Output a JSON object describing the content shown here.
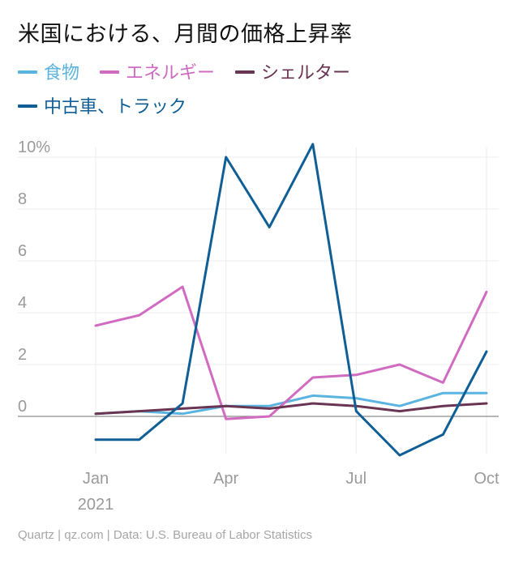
{
  "title": "米国における、月間の価格上昇率",
  "source": "Quartz | qz.com | Data: U.S. Bureau of Labor Statistics",
  "chart_data": {
    "type": "line",
    "title": "米国における、月間の価格上昇率",
    "x": [
      "2021-01",
      "2021-02",
      "2021-03",
      "2021-04",
      "2021-05",
      "2021-06",
      "2021-07",
      "2021-08",
      "2021-09",
      "2021-10"
    ],
    "xticks": [
      {
        "label": "Jan",
        "sublabel": "2021",
        "index": 0
      },
      {
        "label": "Apr",
        "sublabel": "",
        "index": 3
      },
      {
        "label": "Jul",
        "sublabel": "",
        "index": 6
      },
      {
        "label": "Oct",
        "sublabel": "",
        "index": 9
      }
    ],
    "yticks": [
      {
        "value": 10,
        "label": "10%"
      },
      {
        "value": 8,
        "label": "8"
      },
      {
        "value": 6,
        "label": "6"
      },
      {
        "value": 4,
        "label": "4"
      },
      {
        "value": 2,
        "label": "2"
      },
      {
        "value": 0,
        "label": "0"
      }
    ],
    "ylim": [
      -1.6,
      10.5
    ],
    "grid": true,
    "legend_position": "top",
    "series": [
      {
        "name": "食物",
        "color": "#5bb4e0",
        "values": [
          0.1,
          0.2,
          0.1,
          0.4,
          0.4,
          0.8,
          0.7,
          0.4,
          0.9,
          0.9
        ]
      },
      {
        "name": "エネルギー",
        "color": "#d16bc2",
        "values": [
          3.5,
          3.9,
          5.0,
          -0.1,
          0.0,
          1.5,
          1.6,
          2.0,
          1.3,
          4.8
        ]
      },
      {
        "name": "シェルター",
        "color": "#6a3552",
        "values": [
          0.1,
          0.2,
          0.3,
          0.4,
          0.3,
          0.5,
          0.4,
          0.2,
          0.4,
          0.5
        ]
      },
      {
        "name": "中古車、トラック",
        "color": "#0f5f96",
        "values": [
          -0.9,
          -0.9,
          0.5,
          10.0,
          7.3,
          10.5,
          0.2,
          -1.5,
          -0.7,
          2.5
        ]
      }
    ]
  }
}
